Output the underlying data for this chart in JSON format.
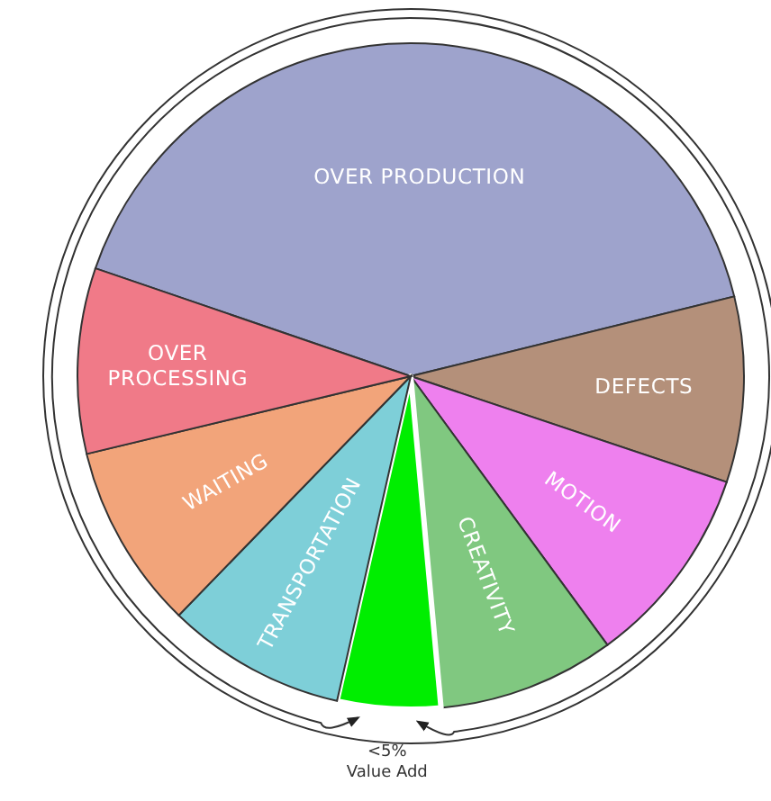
{
  "chart_data": {
    "type": "pie",
    "categories": [
      "OVER PRODUCTION",
      "DEFECTS",
      "MOTION",
      "CREATIVITY",
      "Value Add",
      "TRANSPORTATION",
      "WAITING",
      "OVER\nPROCESSING"
    ],
    "values": [
      40.9,
      9,
      9.8,
      8.6,
      5,
      8.7,
      9,
      9
    ],
    "colors": [
      "#9ea3cc",
      "#b4907a",
      "#ee80ee",
      "#80c880",
      "#00ee00",
      "#7ecfd8",
      "#f2a47a",
      "#f07a88"
    ],
    "value_labels": [
      null,
      null,
      null,
      null,
      "<5%",
      null,
      null,
      null
    ]
  }
}
